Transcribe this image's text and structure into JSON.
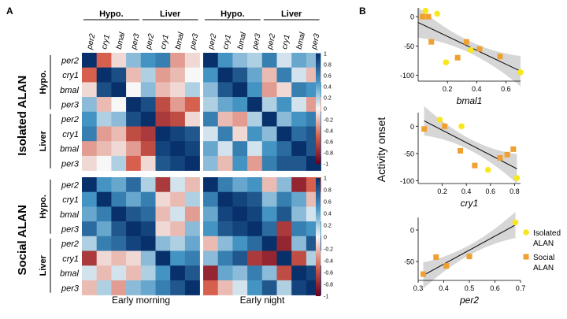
{
  "panel_labels": {
    "a": "A",
    "b": "B"
  },
  "heatmap": {
    "column_groups": [
      "Hypo.",
      "Liver"
    ],
    "row_groups": [
      "Hypo.",
      "Liver"
    ],
    "genes": [
      "per2",
      "cry1",
      "bmal",
      "per3"
    ],
    "conditions": [
      "Isolated ALAN",
      "Social ALAN"
    ],
    "timepoints": [
      "Early morning",
      "Early night"
    ],
    "colorbar_ticks": [
      "1",
      "0.8",
      "0.6",
      "0.4",
      "0.2",
      "0",
      "-0.2",
      "-0.4",
      "-0.6",
      "-0.8",
      "-1"
    ],
    "colors": {
      "positive": "#08306b",
      "zero": "#f7f7f7",
      "negative": "#67001f"
    }
  },
  "chart_data": [
    {
      "type": "heatmap",
      "title": "Isolated ALAN — Early morning",
      "values": [
        [
          1.0,
          -0.5,
          -0.1,
          0.3,
          0.5,
          0.6,
          -0.3,
          -0.1
        ],
        [
          -0.5,
          1.0,
          0.85,
          -0.2,
          0.2,
          -0.3,
          -0.2,
          0.0
        ],
        [
          -0.1,
          0.85,
          1.0,
          0.0,
          0.3,
          -0.2,
          -0.1,
          0.2
        ],
        [
          0.3,
          -0.2,
          0.0,
          1.0,
          0.85,
          -0.6,
          -0.3,
          -0.5
        ],
        [
          0.5,
          0.2,
          0.3,
          0.85,
          1.0,
          -0.7,
          -0.6,
          -0.1
        ],
        [
          0.6,
          -0.3,
          -0.2,
          -0.6,
          -0.7,
          1.0,
          0.9,
          0.8
        ],
        [
          -0.3,
          -0.2,
          -0.1,
          -0.3,
          -0.6,
          0.9,
          1.0,
          0.9
        ],
        [
          -0.1,
          0.0,
          0.2,
          -0.5,
          -0.1,
          0.8,
          0.9,
          1.0
        ]
      ]
    },
    {
      "type": "heatmap",
      "title": "Isolated ALAN — Early night",
      "values": [
        [
          1.0,
          0.5,
          0.3,
          0.2,
          0.6,
          0.1,
          0.4,
          0.3
        ],
        [
          0.5,
          1.0,
          0.8,
          0.4,
          -0.2,
          0.6,
          0.1,
          -0.2
        ],
        [
          0.3,
          0.8,
          1.0,
          0.5,
          -0.3,
          -0.1,
          0.6,
          0.5
        ],
        [
          0.2,
          0.4,
          0.5,
          1.0,
          0.2,
          0.5,
          0.1,
          -0.3
        ],
        [
          0.6,
          -0.2,
          -0.3,
          0.2,
          1.0,
          0.3,
          0.5,
          0.6
        ],
        [
          0.1,
          0.6,
          -0.1,
          0.5,
          0.3,
          1.0,
          0.7,
          0.8
        ],
        [
          0.4,
          0.1,
          0.6,
          0.1,
          0.5,
          0.7,
          1.0,
          0.8
        ],
        [
          0.3,
          -0.2,
          0.5,
          -0.3,
          0.6,
          0.8,
          0.8,
          1.0
        ]
      ]
    },
    {
      "type": "heatmap",
      "title": "Social ALAN — Early morning",
      "values": [
        [
          1.0,
          0.5,
          0.4,
          0.7,
          0.2,
          -0.7,
          0.1,
          -0.2
        ],
        [
          0.5,
          1.0,
          0.6,
          0.4,
          0.6,
          -0.1,
          -0.2,
          0.2
        ],
        [
          0.4,
          0.6,
          1.0,
          0.8,
          0.7,
          -0.2,
          0.1,
          -0.3
        ],
        [
          0.7,
          0.4,
          0.8,
          1.0,
          0.9,
          -0.1,
          -0.2,
          0.3
        ],
        [
          0.2,
          0.6,
          0.7,
          0.9,
          1.0,
          0.3,
          0.2,
          0.4
        ],
        [
          -0.7,
          -0.1,
          -0.2,
          -0.1,
          0.3,
          1.0,
          0.5,
          0.6
        ],
        [
          0.1,
          -0.2,
          0.1,
          -0.2,
          0.2,
          0.5,
          1.0,
          0.8
        ],
        [
          -0.2,
          0.2,
          -0.3,
          0.3,
          0.4,
          0.6,
          0.8,
          1.0
        ]
      ]
    },
    {
      "type": "heatmap",
      "title": "Social ALAN — Early night",
      "values": [
        [
          1.0,
          0.6,
          0.4,
          0.5,
          -0.2,
          0.3,
          -0.8,
          -0.5
        ],
        [
          0.6,
          1.0,
          0.9,
          0.8,
          0.3,
          0.6,
          0.4,
          -0.2
        ],
        [
          0.4,
          0.9,
          1.0,
          0.9,
          0.5,
          0.8,
          0.3,
          0.1
        ],
        [
          0.5,
          0.8,
          0.9,
          1.0,
          0.7,
          -0.7,
          0.6,
          0.5
        ],
        [
          -0.2,
          0.3,
          0.5,
          0.7,
          1.0,
          -0.8,
          0.3,
          0.8
        ],
        [
          0.3,
          0.6,
          0.8,
          -0.7,
          -0.8,
          1.0,
          -0.6,
          0.2
        ],
        [
          -0.8,
          0.4,
          0.3,
          0.6,
          0.3,
          -0.6,
          1.0,
          0.9
        ],
        [
          -0.5,
          -0.2,
          0.1,
          0.5,
          0.8,
          0.2,
          0.9,
          1.0
        ]
      ]
    },
    {
      "type": "scatter",
      "xlabel": "bmal1",
      "ylabel": "Activity onset",
      "xlim": [
        0,
        0.7
      ],
      "ylim": [
        -110,
        15
      ],
      "xticks": [
        "0.2",
        "0.4",
        "0.6"
      ],
      "yticks": [
        "0",
        "-50",
        "-100"
      ],
      "series": [
        {
          "name": "Isolated ALAN",
          "x": [
            0.05,
            0.13,
            0.19,
            0.36,
            0.7
          ],
          "y": [
            10,
            5,
            -78,
            -57,
            -95
          ]
        },
        {
          "name": "Social ALAN",
          "x": [
            0.03,
            0.07,
            0.09,
            0.27,
            0.33,
            0.42,
            0.56
          ],
          "y": [
            0,
            0,
            -43,
            -70,
            -43,
            -55,
            -68
          ]
        }
      ],
      "fit": {
        "x": [
          0.0,
          0.7
        ],
        "y": [
          -10,
          -93
        ]
      }
    },
    {
      "type": "scatter",
      "xlabel": "cry1",
      "ylim": [
        -105,
        25
      ],
      "xlim": [
        0,
        0.85
      ],
      "xticks": [
        "0.2",
        "0.4",
        "0.6",
        "0.8"
      ],
      "yticks": [
        "0",
        "-50",
        "-100"
      ],
      "series": [
        {
          "name": "Isolated ALAN",
          "x": [
            0.18,
            0.36,
            0.58,
            0.82
          ],
          "y": [
            12,
            0,
            -80,
            -95
          ]
        },
        {
          "name": "Social ALAN",
          "x": [
            0.05,
            0.22,
            0.35,
            0.47,
            0.68,
            0.74,
            0.79
          ],
          "y": [
            -5,
            0,
            -45,
            -72,
            -58,
            -52,
            -42
          ]
        }
      ],
      "fit": {
        "x": [
          0.05,
          0.82
        ],
        "y": [
          10,
          -78
        ]
      }
    },
    {
      "type": "scatter",
      "xlabel": "per2",
      "xlim": [
        0.3,
        0.7
      ],
      "ylim": [
        -80,
        20
      ],
      "xticks": [
        "0.3",
        "0.4",
        "0.5",
        "0.6",
        "0.7"
      ],
      "yticks": [
        "0",
        "-50"
      ],
      "series": [
        {
          "name": "Isolated ALAN",
          "x": [
            0.68
          ],
          "y": [
            12
          ]
        },
        {
          "name": "Social ALAN",
          "x": [
            0.32,
            0.37,
            0.41,
            0.5
          ],
          "y": [
            -70,
            -43,
            -57,
            -42
          ]
        }
      ],
      "fit": {
        "x": [
          0.32,
          0.68
        ],
        "y": [
          -72,
          8
        ]
      }
    }
  ],
  "legend": [
    {
      "label": "Isolated ALAN",
      "color": "#f8e71c"
    },
    {
      "label": "Social ALAN",
      "color": "#f0a030"
    }
  ]
}
